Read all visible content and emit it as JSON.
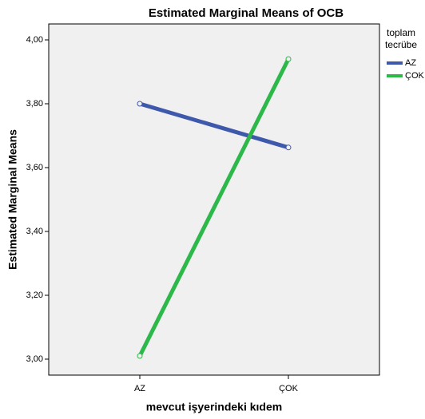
{
  "chart_data": {
    "type": "line",
    "title": "Estimated Marginal Means of OCB",
    "xlabel": "mevcut işyerindeki kıdem",
    "ylabel": "Estimated Marginal Means",
    "legend_title": "toplam tecrübe",
    "categories": [
      "AZ",
      "ÇOK"
    ],
    "series": [
      {
        "name": "AZ",
        "color": "#3e58ac",
        "values": [
          3.8,
          3.663
        ]
      },
      {
        "name": "ÇOK",
        "color": "#2db84a",
        "values": [
          3.01,
          3.94
        ]
      }
    ],
    "ylim": [
      2.95,
      4.05
    ],
    "yticks": [
      {
        "value": 3.0,
        "label": "3,00"
      },
      {
        "value": 3.2,
        "label": "3,20"
      },
      {
        "value": 3.4,
        "label": "3,40"
      },
      {
        "value": 3.6,
        "label": "3,60"
      },
      {
        "value": 3.8,
        "label": "3,80"
      },
      {
        "value": 4.0,
        "label": "4,00"
      }
    ],
    "legend": "right",
    "grid": false
  }
}
